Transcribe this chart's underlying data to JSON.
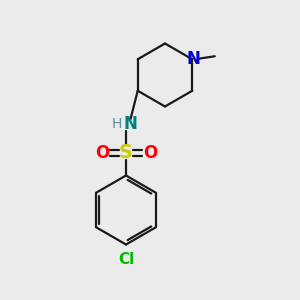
{
  "background_color": "#ebebeb",
  "bond_color": "#1a1a1a",
  "atom_colors": {
    "N_blue": "#0000cc",
    "N_teal": "#008080",
    "S": "#cccc00",
    "O": "#ff0000",
    "Cl": "#00bb00",
    "H": "#5a9090"
  },
  "figsize": [
    3.0,
    3.0
  ],
  "dpi": 100
}
